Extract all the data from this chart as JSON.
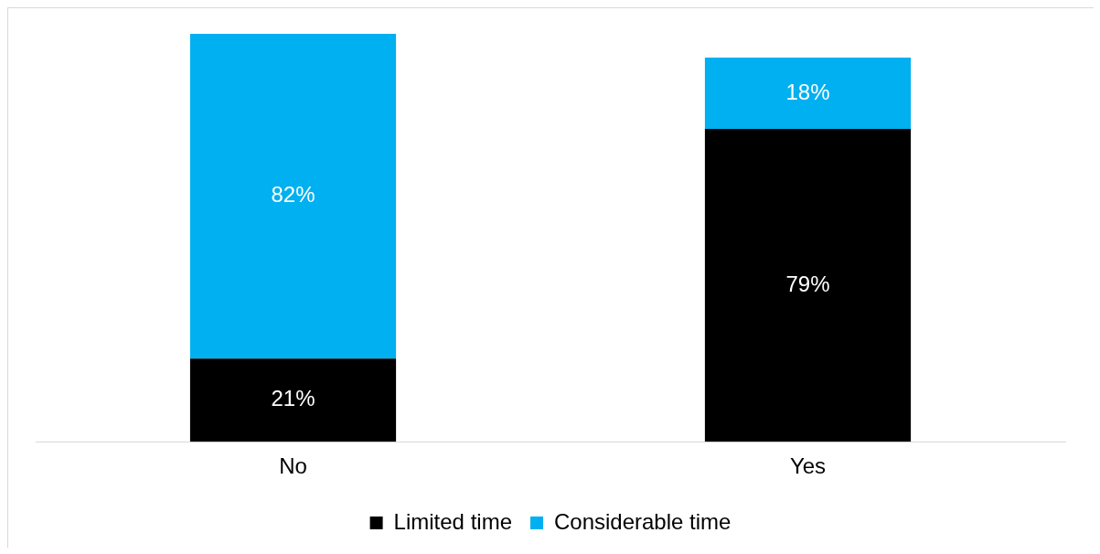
{
  "chart_data": {
    "type": "bar",
    "stacked": true,
    "categories": [
      "No",
      "Yes"
    ],
    "series": [
      {
        "name": "Limited time",
        "color": "#000000",
        "values": [
          21,
          79
        ],
        "value_labels": [
          "21%",
          "79%"
        ]
      },
      {
        "name": "Considerable time",
        "color": "#00b0f0",
        "values": [
          82,
          18
        ],
        "value_labels": [
          "82%",
          "18%"
        ]
      }
    ],
    "legend": "bottom",
    "grid": false
  }
}
